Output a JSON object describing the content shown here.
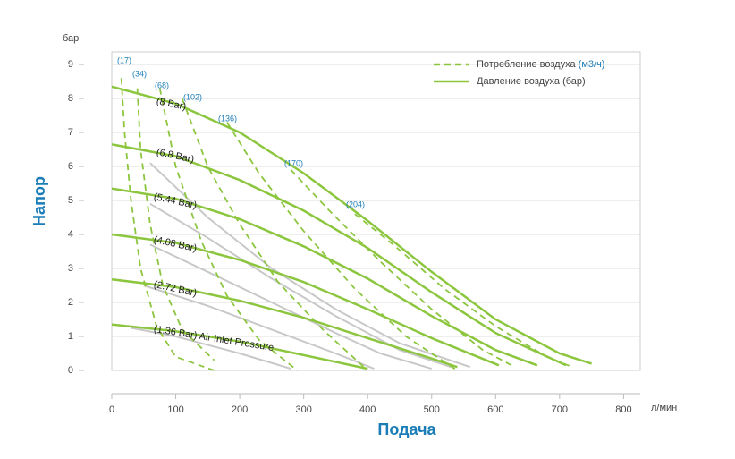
{
  "chart_data": {
    "type": "line",
    "y_label": "Напор",
    "x_label": "Подача",
    "y_unit": "бар",
    "x_unit": "л/мин",
    "xlim": [
      0,
      826
    ],
    "ylim": [
      0,
      9.37
    ],
    "xticks": [
      0,
      100,
      200,
      300,
      400,
      500,
      600,
      700,
      800
    ],
    "yticks": [
      0,
      1,
      2,
      3,
      4,
      5,
      6,
      7,
      8,
      9
    ],
    "grid": true,
    "legend": {
      "position": "upper right",
      "items": [
        {
          "label": "Потребление воздуха",
          "unit": "(м3/ч)",
          "color": "#8cc63f",
          "dash": true
        },
        {
          "label": "Давление воздуха (бар)",
          "color": "#8cc63f",
          "dash": false
        }
      ]
    },
    "series": [
      {
        "color": "#c8c8c8",
        "style": "solid",
        "x": [
          60,
          150,
          250,
          350,
          450,
          560
        ],
        "values": [
          6.1,
          4.5,
          3.0,
          1.8,
          0.8,
          0.1
        ]
      },
      {
        "color": "#c8c8c8",
        "style": "solid",
        "x": [
          60,
          150,
          250,
          350,
          450,
          530
        ],
        "values": [
          4.9,
          3.9,
          2.7,
          1.6,
          0.6,
          0.1
        ]
      },
      {
        "color": "#c8c8c8",
        "style": "solid",
        "x": [
          60,
          150,
          250,
          350,
          420,
          500
        ],
        "values": [
          3.7,
          2.9,
          2.0,
          1.1,
          0.5,
          0.05
        ]
      },
      {
        "color": "#c8c8c8",
        "style": "solid",
        "x": [
          50,
          150,
          250,
          350,
          410
        ],
        "values": [
          2.5,
          1.9,
          1.2,
          0.5,
          0.05
        ]
      },
      {
        "color": "#c8c8c8",
        "style": "solid",
        "x": [
          30,
          100,
          200,
          280
        ],
        "values": [
          1.25,
          1.0,
          0.5,
          0.05
        ]
      },
      {
        "color": "#8cc63f",
        "style": "dash",
        "x": [
          15,
          20,
          30,
          45,
          70,
          100,
          160
        ],
        "values": [
          8.6,
          7.0,
          5.0,
          3.0,
          1.3,
          0.4,
          0
        ]
      },
      {
        "color": "#8cc63f",
        "style": "dash",
        "x": [
          40,
          45,
          60,
          80,
          110,
          160
        ],
        "values": [
          8.3,
          6.5,
          4.3,
          2.5,
          1.2,
          0.3
        ]
      },
      {
        "color": "#8cc63f",
        "style": "dash",
        "x": [
          75,
          100,
          140,
          180,
          230,
          290
        ],
        "values": [
          8.3,
          6.0,
          3.8,
          2.2,
          0.9,
          0
        ]
      },
      {
        "color": "#8cc63f",
        "style": "dash",
        "x": [
          110,
          150,
          200,
          260,
          330,
          400
        ],
        "values": [
          8.0,
          6.0,
          4.3,
          2.6,
          1.2,
          0
        ]
      },
      {
        "color": "#8cc63f",
        "style": "dash",
        "x": [
          180,
          230,
          300,
          380,
          460,
          540
        ],
        "values": [
          7.3,
          5.8,
          4.1,
          2.4,
          1.0,
          0
        ]
      },
      {
        "color": "#8cc63f",
        "style": "dash",
        "x": [
          280,
          340,
          420,
          500,
          580,
          630
        ],
        "values": [
          5.9,
          4.7,
          3.2,
          1.8,
          0.6,
          0.1
        ]
      },
      {
        "color": "#8cc63f",
        "style": "dash",
        "x": [
          380,
          440,
          520,
          600,
          680,
          720
        ],
        "values": [
          4.6,
          3.7,
          2.4,
          1.3,
          0.4,
          0.1
        ]
      },
      {
        "color": "#8cc63f",
        "style": "solid",
        "x": [
          0,
          100,
          200,
          300,
          400,
          500,
          600,
          700,
          750
        ],
        "values": [
          8.35,
          7.85,
          7.0,
          5.8,
          4.4,
          2.9,
          1.5,
          0.5,
          0.2
        ]
      },
      {
        "color": "#8cc63f",
        "style": "solid",
        "x": [
          0,
          100,
          200,
          300,
          400,
          500,
          600,
          710
        ],
        "values": [
          6.65,
          6.3,
          5.6,
          4.7,
          3.6,
          2.3,
          1.1,
          0.15
        ]
      },
      {
        "color": "#8cc63f",
        "style": "solid",
        "x": [
          0,
          100,
          200,
          300,
          400,
          500,
          600,
          665
        ],
        "values": [
          5.35,
          5.05,
          4.45,
          3.65,
          2.7,
          1.6,
          0.6,
          0.15
        ]
      },
      {
        "color": "#8cc63f",
        "style": "solid",
        "x": [
          0,
          100,
          200,
          300,
          400,
          500,
          605
        ],
        "values": [
          4.0,
          3.75,
          3.25,
          2.6,
          1.8,
          0.95,
          0.15
        ]
      },
      {
        "color": "#8cc63f",
        "style": "solid",
        "x": [
          0,
          100,
          200,
          300,
          400,
          500,
          540
        ],
        "values": [
          2.68,
          2.45,
          2.05,
          1.55,
          0.95,
          0.35,
          0.1
        ]
      },
      {
        "color": "#8cc63f",
        "style": "solid",
        "x": [
          0,
          100,
          200,
          300,
          400
        ],
        "values": [
          1.35,
          1.15,
          0.85,
          0.45,
          0.05
        ]
      }
    ],
    "pressure_labels": [
      "(8 Bar)",
      "(6.8 Bar)",
      "(5.44 Bar)",
      "(4.08 Bar)",
      "(2.72 Bar)",
      "(1.36 Bar) Air Inlet Pressure"
    ],
    "consumption_labels": [
      "(17)",
      "(34)",
      "(68)",
      "(102)",
      "(136)",
      "(170)",
      "(204)"
    ]
  }
}
